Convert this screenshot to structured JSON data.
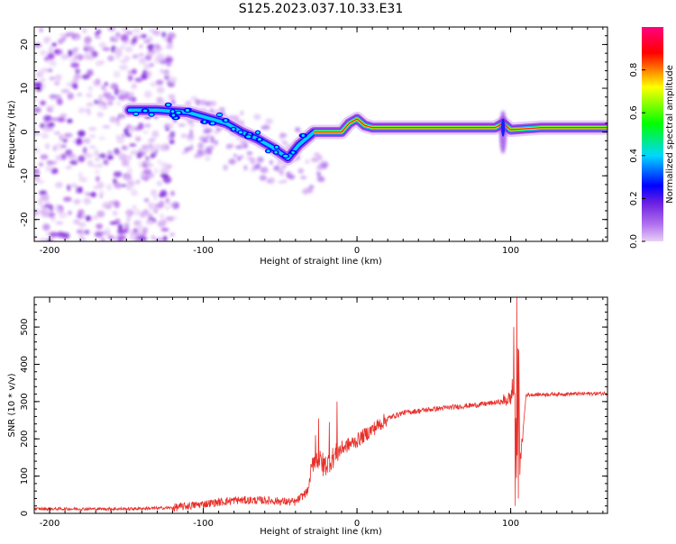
{
  "page": {
    "title": "S125.2023.037.10.33.E31"
  },
  "chart_data": [
    {
      "type": "heatmap",
      "xlabel": "Height of straight line (km)",
      "ylabel": "Frequency (Hz)",
      "xlim": [
        -210,
        163
      ],
      "ylim": [
        -25,
        24
      ],
      "xticks": [
        -200,
        -100,
        0,
        100
      ],
      "yticks": [
        -20,
        -10,
        0,
        10,
        20
      ],
      "colorbar": {
        "label": "Normalized spectral amplitude",
        "range": [
          0.0,
          1.0
        ],
        "ticks": [
          0.0,
          0.2,
          0.4,
          0.6,
          0.8
        ],
        "colors": [
          "#e8d0f6",
          "#8a2be2",
          "#0000ff",
          "#00d8ff",
          "#00ff00",
          "#ffff00",
          "#ff0000",
          "#ff0080"
        ]
      },
      "ridge": [
        {
          "x": -148,
          "y": 5.0
        },
        {
          "x": -130,
          "y": 5.0
        },
        {
          "x": -110,
          "y": 4.5
        },
        {
          "x": -95,
          "y": 3.0
        },
        {
          "x": -85,
          "y": 2.0
        },
        {
          "x": -75,
          "y": 0.0
        },
        {
          "x": -65,
          "y": -1.5
        },
        {
          "x": -55,
          "y": -3.5
        },
        {
          "x": -45,
          "y": -6.0
        },
        {
          "x": -38,
          "y": -3.0
        },
        {
          "x": -33,
          "y": -1.5
        },
        {
          "x": -28,
          "y": 0.0
        },
        {
          "x": -20,
          "y": 0.0
        },
        {
          "x": -10,
          "y": 0.0
        },
        {
          "x": -5,
          "y": 2.0
        },
        {
          "x": 0,
          "y": 3.0
        },
        {
          "x": 5,
          "y": 1.5
        },
        {
          "x": 10,
          "y": 1.0
        },
        {
          "x": 50,
          "y": 1.0
        },
        {
          "x": 90,
          "y": 1.0
        },
        {
          "x": 95,
          "y": 2.0
        },
        {
          "x": 100,
          "y": 0.5
        },
        {
          "x": 120,
          "y": 1.0
        },
        {
          "x": 163,
          "y": 1.0
        }
      ]
    },
    {
      "type": "line",
      "xlabel": "Height of straight line (km)",
      "ylabel": "SNR (10 * v/v)",
      "xlim": [
        -210,
        163
      ],
      "ylim": [
        0,
        580
      ],
      "xticks": [
        -200,
        -100,
        0,
        100
      ],
      "yticks": [
        0,
        100,
        200,
        300,
        400,
        500
      ],
      "color": "#e8302a",
      "series_trend": {
        "x": [
          -210,
          -150,
          -120,
          -100,
          -80,
          -60,
          -40,
          -32,
          -28,
          -20,
          -10,
          0,
          10,
          20,
          30,
          50,
          80,
          95,
          100,
          103,
          104,
          105,
          106,
          110,
          130,
          163
        ],
        "y": [
          12,
          12,
          15,
          25,
          35,
          35,
          30,
          60,
          150,
          130,
          175,
          195,
          225,
          255,
          270,
          280,
          292,
          300,
          310,
          330,
          40,
          560,
          120,
          318,
          320,
          322
        ]
      },
      "spikes": [
        {
          "x": -27,
          "y": 210
        },
        {
          "x": -25,
          "y": 255
        },
        {
          "x": -22,
          "y": 100
        },
        {
          "x": -18,
          "y": 245
        },
        {
          "x": -13,
          "y": 300
        },
        {
          "x": 101,
          "y": 360
        },
        {
          "x": 102,
          "y": 500
        },
        {
          "x": 103,
          "y": 20
        },
        {
          "x": 104,
          "y": 580
        },
        {
          "x": 105,
          "y": 40
        }
      ]
    }
  ]
}
